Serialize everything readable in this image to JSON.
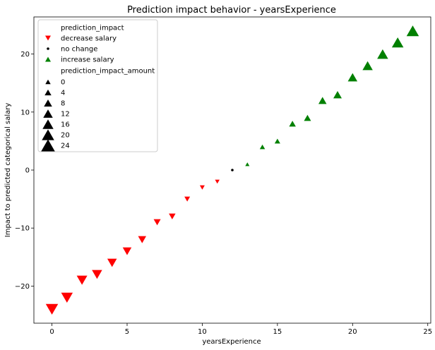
{
  "chart_data": {
    "type": "scatter",
    "title": "Prediction impact behavior - yearsExperience",
    "xlabel": "yearsExperience",
    "ylabel": "Impact to predicted categorical salary",
    "xlim": [
      -1.2,
      25.2
    ],
    "ylim": [
      -26.4,
      26.4
    ],
    "xticks": [
      0,
      5,
      10,
      15,
      20,
      25
    ],
    "yticks": [
      -20,
      -10,
      0,
      10,
      20
    ],
    "grid": false,
    "legend_placement": "upper-left",
    "legend": {
      "hue_title": "prediction_impact",
      "hue_entries": [
        {
          "label": "decrease salary",
          "color": "#ff0000",
          "marker": "triangle-down"
        },
        {
          "label": "no change",
          "color": "#000000",
          "marker": "circle"
        },
        {
          "label": "increase salary",
          "color": "#008000",
          "marker": "triangle-up"
        }
      ],
      "size_title": "prediction_impact_amount",
      "size_entries": [
        "0",
        "4",
        "8",
        "12",
        "16",
        "20",
        "24"
      ]
    },
    "series": [
      {
        "name": "decrease salary",
        "color": "#ff0000",
        "marker": "triangle-down",
        "x": [
          0,
          1,
          2,
          3,
          4,
          5,
          6,
          7,
          8,
          9,
          10,
          11
        ],
        "y": [
          -24,
          -22,
          -19,
          -18,
          -16,
          -14,
          -12,
          -9,
          -8,
          -5,
          -3,
          -2
        ],
        "amount": [
          24,
          22,
          19,
          18,
          16,
          14,
          12,
          9,
          8,
          5,
          3,
          2
        ]
      },
      {
        "name": "no change",
        "color": "#000000",
        "marker": "circle",
        "x": [
          12
        ],
        "y": [
          0
        ],
        "amount": [
          0
        ]
      },
      {
        "name": "increase salary",
        "color": "#008000",
        "marker": "triangle-up",
        "x": [
          13,
          14,
          15,
          16,
          17,
          18,
          19,
          20,
          21,
          22,
          23,
          24
        ],
        "y": [
          1,
          4,
          5,
          8,
          9,
          12,
          13,
          16,
          18,
          20,
          22,
          24
        ],
        "amount": [
          1,
          4,
          5,
          8,
          9,
          12,
          13,
          16,
          18,
          20,
          22,
          24
        ]
      }
    ]
  }
}
